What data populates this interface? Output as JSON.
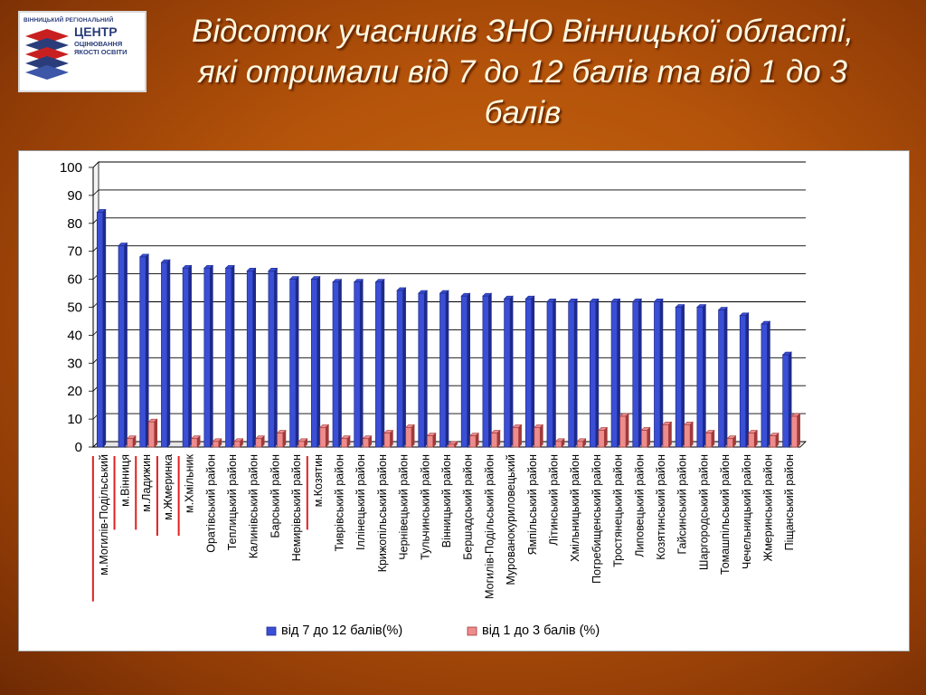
{
  "logo": {
    "line1": "ВІННИЦЬКИЙ РЕГІОНАЛЬНИЙ",
    "line2": "ЦЕНТР",
    "line3a": "ОЦІНЮВАННЯ",
    "line3b": "ЯКОСТІ ОСВІТИ"
  },
  "slide": {
    "title_line1": "Відсоток учасників ЗНО Вінницької області,",
    "title_line2": "які отримали від 7 до 12 балів та від 1 до 3",
    "title_line3": "балів"
  },
  "colors": {
    "series1": "#3a4fd6",
    "series1_dark": "#1e2a8a",
    "series2": "#ee8c8c",
    "series2_dark": "#a03a3a",
    "highlight": "#e02020"
  },
  "chart_data": {
    "type": "bar",
    "ylim": [
      0,
      100
    ],
    "yticks": [
      "0",
      "10",
      "20",
      "30",
      "40",
      "50",
      "60",
      "70",
      "80",
      "90",
      "100"
    ],
    "grid": true,
    "legend_position": "bottom",
    "categories": [
      "м.Могилів-Подільський",
      "м.Вінниця",
      "м.Ладижин",
      "м.Жмеринка",
      "м.Хмільник",
      "Оратівський район",
      "Теплицький район",
      "Калинівський район",
      "Барський район",
      "Немирівський район",
      "м.Козятин",
      "Тиврівський район",
      "Іллінецький район",
      "Крижопільський район",
      "Чернівецький район",
      "Тульчинський район",
      "Вінницький район",
      "Бершадський район",
      "Могилів-Подільський район",
      "Мурованокуриловецький",
      "Ямпільський район",
      "Літинський район",
      "Хмільницький район",
      "Погребищенський район",
      "Тростянецький район",
      "Липовецький район",
      "Козятинський район",
      "Гайсинський район",
      "Шаргородський район",
      "Томашпільський район",
      "Чечельницький район",
      "Жмеринський район",
      "Піщанський район"
    ],
    "highlighted": [
      0,
      1,
      2,
      3,
      4,
      10
    ],
    "series": [
      {
        "name": "від 7 до 12 балів(%)",
        "values": [
          84,
          72,
          68,
          66,
          64,
          64,
          64,
          63,
          63,
          60,
          60,
          59,
          59,
          59,
          56,
          55,
          55,
          54,
          54,
          53,
          53,
          52,
          52,
          52,
          52,
          52,
          52,
          50,
          50,
          49,
          47,
          44,
          33
        ]
      },
      {
        "name": "від 1 до 3 балів (%)",
        "values": [
          0,
          3,
          9,
          0,
          3,
          2,
          2,
          3,
          5,
          2,
          7,
          3,
          3,
          5,
          7,
          4,
          1,
          4,
          5,
          7,
          7,
          2,
          2,
          6,
          11,
          6,
          8,
          8,
          5,
          3,
          5,
          4,
          11
        ]
      }
    ]
  }
}
